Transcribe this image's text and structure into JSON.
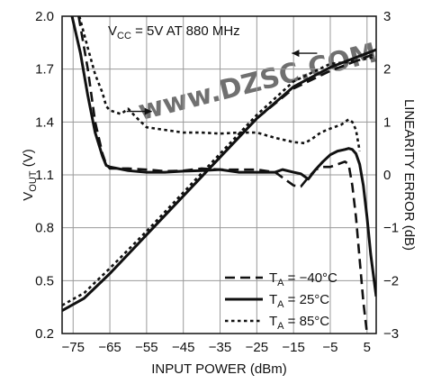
{
  "chart_data": {
    "type": "line",
    "annotation": {
      "prefix": "V",
      "sub": "CC",
      "suffix": " = 5V AT 880 MHz"
    },
    "watermark": "www.DZSC.COM",
    "xlabel": "INPUT POWER (dBm)",
    "ylabel_left": {
      "prefix": "V",
      "sub": "OUT",
      "suffix": " (V)"
    },
    "ylabel_right": "LINEARITY ERROR (dB)",
    "xlim": [
      -78,
      7.5
    ],
    "ylim_left": [
      0.2,
      2.0
    ],
    "ylim_right": [
      -3,
      3
    ],
    "xticks": [
      -75,
      -65,
      -55,
      -45,
      -35,
      -25,
      -15,
      -5,
      5
    ],
    "yticks_left": [
      "0.2",
      "0.5",
      "0.8",
      "1.1",
      "1.4",
      "1.7",
      "2.0"
    ],
    "yticks_right": [
      "−3",
      "−2",
      "−1",
      "0",
      "1",
      "2",
      "3"
    ],
    "grid": true,
    "legend_position": "bottom-right",
    "arrows": [
      {
        "points_to": "right",
        "x": -57,
        "y_right": 1.2
      },
      {
        "points_to": "left",
        "x": -12,
        "y_right": 2.3
      }
    ],
    "series": [
      {
        "name": "T_A = −40°C",
        "label_prefix": "T",
        "label_sub": "A",
        "label_suffix": " = −40°C",
        "dash": "dashed",
        "vout": {
          "x": [
            -78,
            -72,
            -65,
            -55,
            -45,
            -35,
            -25,
            -15,
            -5,
            0,
            5,
            7.5
          ],
          "y": [
            0.33,
            0.4,
            0.54,
            0.76,
            0.98,
            1.2,
            1.42,
            1.59,
            1.69,
            1.73,
            1.77,
            1.79
          ]
        },
        "error": {
          "x": [
            -73.5,
            -71,
            -69,
            -67,
            -66,
            -65,
            -60,
            -55,
            -50,
            -45,
            -40,
            -35,
            -30,
            -25,
            -20,
            -15,
            -13,
            -11,
            -9,
            -7,
            -5,
            -3,
            -1,
            0,
            1,
            2,
            3,
            4,
            5
          ],
          "y": [
            3.0,
            2.0,
            1.0,
            0.4,
            0.2,
            0.12,
            0.12,
            0.1,
            0.07,
            0.08,
            0.12,
            0.1,
            0.1,
            0.1,
            0.05,
            -0.2,
            -0.22,
            -0.05,
            0.1,
            0.15,
            0.15,
            0.2,
            0.25,
            0.2,
            -0.2,
            -0.8,
            -1.6,
            -2.4,
            -3.0
          ]
        }
      },
      {
        "name": "T_A = 25°C",
        "label_prefix": "T",
        "label_sub": "A",
        "label_suffix": " = 25°C",
        "dash": "solid",
        "vout": {
          "x": [
            -78,
            -72,
            -65,
            -55,
            -45,
            -35,
            -25,
            -15,
            -5,
            0,
            5,
            7.5
          ],
          "y": [
            0.33,
            0.4,
            0.54,
            0.76,
            0.98,
            1.2,
            1.42,
            1.6,
            1.71,
            1.75,
            1.79,
            1.81
          ]
        },
        "error": {
          "x": [
            -75.3,
            -73,
            -71,
            -69,
            -67,
            -66,
            -65,
            -60,
            -55,
            -50,
            -45,
            -40,
            -35,
            -30,
            -25,
            -20,
            -18,
            -15,
            -13,
            -11,
            -9,
            -7,
            -5,
            -3,
            -1,
            0,
            1,
            2,
            3,
            4,
            5,
            6,
            7.5
          ],
          "y": [
            3.0,
            2.3,
            1.5,
            0.8,
            0.35,
            0.18,
            0.15,
            0.08,
            0.05,
            0.05,
            0.07,
            0.08,
            0.1,
            0.05,
            0.05,
            0.05,
            0.1,
            0.05,
            0.02,
            -0.08,
            0.1,
            0.25,
            0.38,
            0.45,
            0.48,
            0.5,
            0.48,
            0.4,
            0.2,
            -0.2,
            -0.8,
            -1.5,
            -2.3
          ]
        }
      },
      {
        "name": "T_A = 85°C",
        "label_prefix": "T",
        "label_sub": "A",
        "label_suffix": " = 85°C",
        "dash": "dotted",
        "vout": {
          "x": [
            -78,
            -72,
            -65,
            -55,
            -45,
            -35,
            -25,
            -15,
            -5,
            0,
            5,
            7.5
          ],
          "y": [
            0.36,
            0.43,
            0.57,
            0.78,
            1.0,
            1.22,
            1.44,
            1.63,
            1.73,
            1.74,
            1.76,
            1.77
          ]
        },
        "error": {
          "x": [
            -73.3,
            -71,
            -69,
            -67,
            -66,
            -65,
            -62,
            -60,
            -58,
            -55,
            -50,
            -45,
            -40,
            -35,
            -30,
            -25,
            -20,
            -15,
            -12,
            -10,
            -8,
            -6,
            -4,
            -2,
            0,
            1,
            2,
            3
          ],
          "y": [
            3.0,
            2.4,
            1.9,
            1.55,
            1.3,
            1.22,
            1.15,
            1.25,
            1.1,
            0.9,
            0.85,
            0.8,
            0.8,
            0.78,
            0.8,
            0.8,
            0.7,
            0.62,
            0.6,
            0.68,
            0.78,
            0.85,
            0.9,
            0.95,
            1.05,
            1.0,
            0.85,
            0.45
          ]
        }
      }
    ]
  }
}
